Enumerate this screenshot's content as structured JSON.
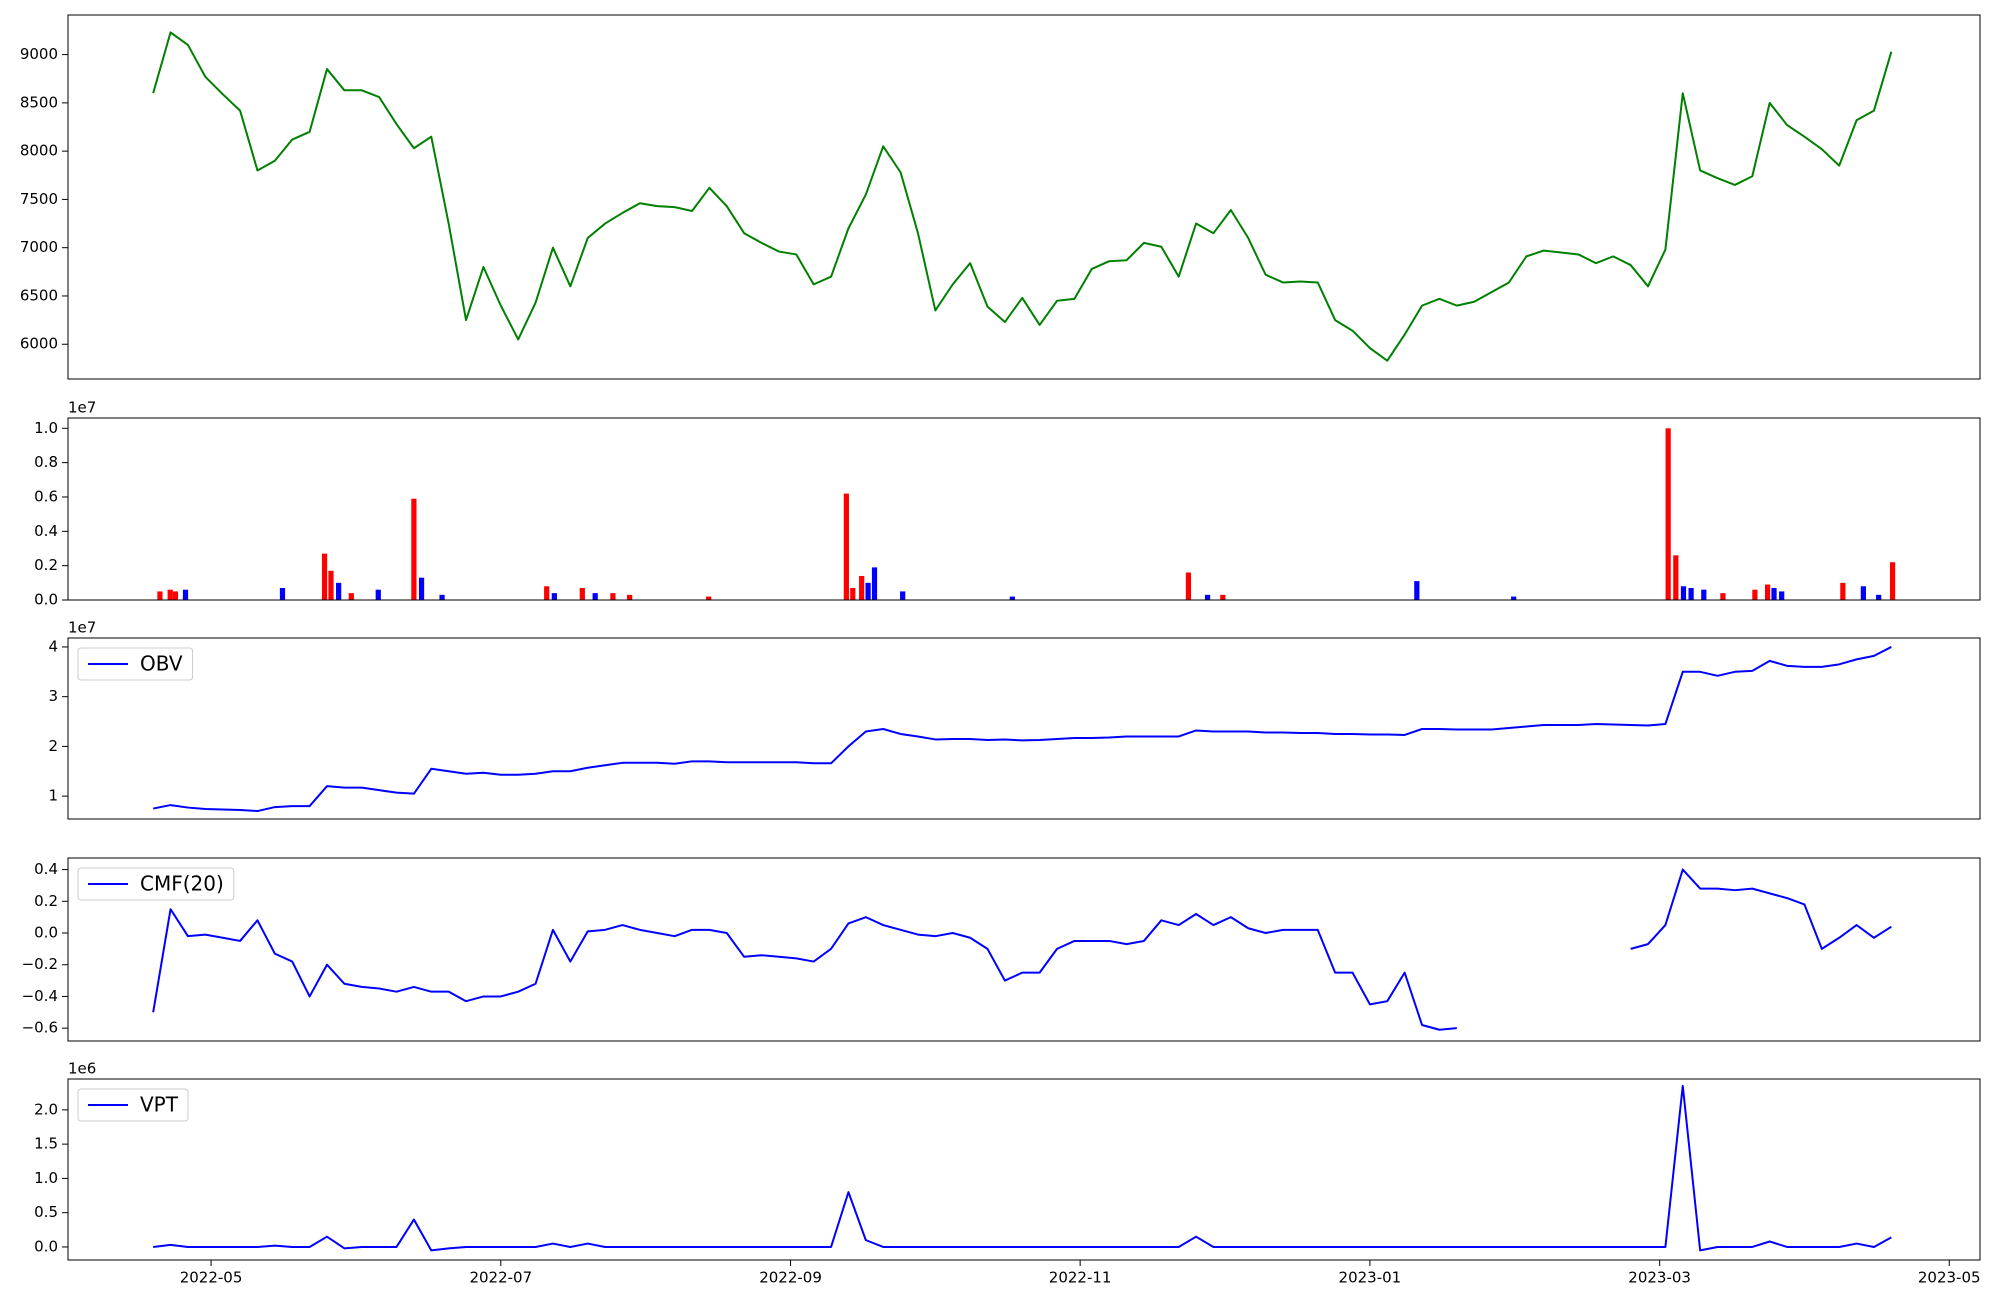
{
  "chart_data": [
    {
      "type": "line",
      "color": "#008000",
      "xlim": [
        2022.251,
        2023.351
      ],
      "ylim": [
        5640,
        9410
      ],
      "yticks": [
        6000,
        6500,
        7000,
        7500,
        8000,
        8500,
        9000
      ],
      "x": [
        2022.3,
        2022.31,
        2022.32,
        2022.33,
        2022.34,
        2022.35,
        2022.36,
        2022.37,
        2022.38,
        2022.39,
        2022.4,
        2022.41,
        2022.42,
        2022.43,
        2022.44,
        2022.45,
        2022.46,
        2022.47,
        2022.48,
        2022.49,
        2022.5,
        2022.51,
        2022.52,
        2022.53,
        2022.54,
        2022.55,
        2022.56,
        2022.57,
        2022.58,
        2022.59,
        2022.6,
        2022.61,
        2022.62,
        2022.63,
        2022.64,
        2022.65,
        2022.66,
        2022.67,
        2022.68,
        2022.69,
        2022.7,
        2022.71,
        2022.72,
        2022.73,
        2022.74,
        2022.75,
        2022.76,
        2022.77,
        2022.78,
        2022.79,
        2022.8,
        2022.81,
        2022.82,
        2022.83,
        2022.84,
        2022.85,
        2022.86,
        2022.87,
        2022.88,
        2022.89,
        2022.9,
        2022.91,
        2022.92,
        2022.93,
        2022.94,
        2022.95,
        2022.96,
        2022.97,
        2022.98,
        2022.99,
        2023,
        2023.01,
        2023.02,
        2023.03,
        2023.04,
        2023.05,
        2023.06,
        2023.07,
        2023.08,
        2023.09,
        2023.1,
        2023.11,
        2023.12,
        2023.13,
        2023.14,
        2023.15,
        2023.16,
        2023.17,
        2023.18,
        2023.19,
        2023.2,
        2023.21,
        2023.22,
        2023.23,
        2023.24,
        2023.25,
        2023.26,
        2023.27,
        2023.28,
        2023.29,
        2023.3
      ],
      "values": [
        8600,
        9230,
        9100,
        8770,
        8590,
        8420,
        7800,
        7900,
        8120,
        8200,
        8850,
        8630,
        8630,
        8560,
        8280,
        8030,
        8150,
        7250,
        6250,
        6800,
        6400,
        6050,
        6430,
        7000,
        6600,
        7100,
        7250,
        7360,
        7460,
        7430,
        7420,
        7380,
        7620,
        7430,
        7150,
        7050,
        6960,
        6930,
        6620,
        6700,
        7200,
        7550,
        8050,
        7780,
        7150,
        6350,
        6620,
        6840,
        6390,
        6230,
        6480,
        6200,
        6450,
        6470,
        6780,
        6860,
        6870,
        7050,
        7010,
        6700,
        7250,
        7150,
        7390,
        7100,
        6720,
        6640,
        6650,
        6640,
        6250,
        6140,
        5960,
        5830,
        6100,
        6400,
        6470,
        6400,
        6440,
        6540,
        6640,
        6910,
        6970,
        6950,
        6930,
        6840,
        6910,
        6820,
        6600,
        6980,
        8600,
        7800,
        7720,
        7650,
        7740,
        8500,
        8270,
        8150,
        8020,
        7850,
        8320,
        8420,
        9030
      ]
    },
    {
      "type": "bar",
      "offset_label": "1e7",
      "xlim": [
        2022.251,
        2023.351
      ],
      "ylim": [
        0,
        1.06
      ],
      "yticks": [
        {
          "value": 0,
          "label": "0.0"
        },
        0.2,
        0.4,
        0.6,
        0.8,
        {
          "value": 1,
          "label": "1.0"
        }
      ],
      "x": [
        2022.3039,
        2022.3098,
        2022.3128,
        2022.3186,
        2022.3744,
        2022.3986,
        2022.4023,
        2022.4067,
        2022.414,
        2022.4295,
        2022.45,
        2022.4544,
        2022.4662,
        2022.5264,
        2022.5308,
        2022.5469,
        2022.5543,
        2022.5645,
        2022.5741,
        2022.6196,
        2022.6988,
        2022.7025,
        2022.7076,
        2022.7113,
        2022.715,
        2022.7312,
        2022.7943,
        2022.8956,
        2022.9066,
        2022.9154,
        2023.027,
        2023.0827,
        2023.1716,
        2023.176,
        2023.1804,
        2023.1848,
        2023.1921,
        2023.2031,
        2023.2215,
        2023.2288,
        2023.2325,
        2023.2369,
        2023.2721,
        2023.2839,
        2023.2927,
        2023.3007
      ],
      "values": [
        0.05,
        0.06,
        0.05,
        0.06,
        0.07,
        0.27,
        0.17,
        0.1,
        0.04,
        0.06,
        0.59,
        0.13,
        0.03,
        0.08,
        0.04,
        0.07,
        0.04,
        0.04,
        0.03,
        0.02,
        0.62,
        0.07,
        0.14,
        0.1,
        0.19,
        0.05,
        0.02,
        0.16,
        0.03,
        0.03,
        0.11,
        0.02,
        1,
        0.26,
        0.08,
        0.07,
        0.06,
        0.04,
        0.06,
        0.09,
        0.07,
        0.05,
        0.1,
        0.08,
        0.03,
        0.22
      ],
      "colors": [
        "#ff0000",
        "#ff0000",
        "#ff0000",
        "#0000ff",
        "#0000ff",
        "#ff0000",
        "#ff0000",
        "#0000ff",
        "#ff0000",
        "#0000ff",
        "#ff0000",
        "#0000ff",
        "#0000ff",
        "#ff0000",
        "#0000ff",
        "#ff0000",
        "#0000ff",
        "#ff0000",
        "#ff0000",
        "#ff0000",
        "#ff0000",
        "#ff0000",
        "#ff0000",
        "#0000ff",
        "#0000ff",
        "#0000ff",
        "#0000ff",
        "#ff0000",
        "#0000ff",
        "#ff0000",
        "#0000ff",
        "#0000ff",
        "#ff0000",
        "#ff0000",
        "#0000ff",
        "#0000ff",
        "#0000ff",
        "#ff0000",
        "#ff0000",
        "#ff0000",
        "#0000ff",
        "#0000ff",
        "#ff0000",
        "#0000ff",
        "#0000ff",
        "#ff0000"
      ]
    },
    {
      "type": "line",
      "offset_label": "1e7",
      "legend": "upper left",
      "xlim": [
        2022.251,
        2023.351
      ],
      "ylim": [
        0.54,
        4.18
      ],
      "yticks": [
        1,
        2,
        3,
        4
      ],
      "x": [
        2022.3,
        2022.31,
        2022.32,
        2022.33,
        2022.34,
        2022.35,
        2022.36,
        2022.37,
        2022.38,
        2022.39,
        2022.4,
        2022.41,
        2022.42,
        2022.43,
        2022.44,
        2022.45,
        2022.46,
        2022.47,
        2022.48,
        2022.49,
        2022.5,
        2022.51,
        2022.52,
        2022.53,
        2022.54,
        2022.55,
        2022.56,
        2022.57,
        2022.58,
        2022.59,
        2022.6,
        2022.61,
        2022.62,
        2022.63,
        2022.64,
        2022.65,
        2022.66,
        2022.67,
        2022.68,
        2022.69,
        2022.7,
        2022.71,
        2022.72,
        2022.73,
        2022.74,
        2022.75,
        2022.76,
        2022.77,
        2022.78,
        2022.79,
        2022.8,
        2022.81,
        2022.82,
        2022.83,
        2022.84,
        2022.85,
        2022.86,
        2022.87,
        2022.88,
        2022.89,
        2022.9,
        2022.91,
        2022.92,
        2022.93,
        2022.94,
        2022.95,
        2022.96,
        2022.97,
        2022.98,
        2022.99,
        2023,
        2023.01,
        2023.02,
        2023.03,
        2023.04,
        2023.05,
        2023.06,
        2023.07,
        2023.08,
        2023.09,
        2023.1,
        2023.11,
        2023.12,
        2023.13,
        2023.14,
        2023.15,
        2023.16,
        2023.17,
        2023.18,
        2023.19,
        2023.2,
        2023.21,
        2023.22,
        2023.23,
        2023.24,
        2023.25,
        2023.26,
        2023.27,
        2023.28,
        2023.29,
        2023.3
      ],
      "series": [
        {
          "name": "OBV",
          "color": "#0000ff",
          "values": [
            0.75,
            0.82,
            0.77,
            0.74,
            0.73,
            0.72,
            0.7,
            0.78,
            0.8,
            0.8,
            1.2,
            1.17,
            1.17,
            1.12,
            1.07,
            1.05,
            1.55,
            1.5,
            1.45,
            1.47,
            1.43,
            1.43,
            1.45,
            1.5,
            1.5,
            1.57,
            1.62,
            1.67,
            1.67,
            1.67,
            1.65,
            1.7,
            1.7,
            1.68,
            1.68,
            1.68,
            1.68,
            1.68,
            1.66,
            1.66,
            2,
            2.3,
            2.35,
            2.25,
            2.2,
            2.14,
            2.15,
            2.15,
            2.13,
            2.14,
            2.12,
            2.13,
            2.15,
            2.17,
            2.17,
            2.18,
            2.2,
            2.2,
            2.2,
            2.2,
            2.32,
            2.3,
            2.3,
            2.3,
            2.28,
            2.28,
            2.27,
            2.27,
            2.25,
            2.25,
            2.24,
            2.24,
            2.23,
            2.35,
            2.35,
            2.34,
            2.34,
            2.34,
            2.37,
            2.4,
            2.43,
            2.43,
            2.43,
            2.45,
            2.44,
            2.43,
            2.42,
            2.45,
            3.5,
            3.5,
            3.42,
            3.5,
            3.52,
            3.72,
            3.62,
            3.6,
            3.6,
            3.65,
            3.75,
            3.82,
            4
          ]
        }
      ]
    },
    {
      "type": "line",
      "legend": "upper left",
      "xlim": [
        2022.251,
        2023.351
      ],
      "ylim": [
        -0.681,
        0.473
      ],
      "yticks": [
        {
          "value": -0.6,
          "label": "−0.6"
        },
        {
          "value": -0.4,
          "label": "−0.4"
        },
        {
          "value": -0.2,
          "label": "−0.2"
        },
        {
          "value": 0,
          "label": "0.0"
        },
        0.2,
        0.4
      ],
      "x": [
        2022.3,
        2022.31,
        2022.32,
        2022.33,
        2022.34,
        2022.35,
        2022.36,
        2022.37,
        2022.38,
        2022.39,
        2022.4,
        2022.41,
        2022.42,
        2022.43,
        2022.44,
        2022.45,
        2022.46,
        2022.47,
        2022.48,
        2022.49,
        2022.5,
        2022.51,
        2022.52,
        2022.53,
        2022.54,
        2022.55,
        2022.56,
        2022.57,
        2022.58,
        2022.59,
        2022.6,
        2022.61,
        2022.62,
        2022.63,
        2022.64,
        2022.65,
        2022.66,
        2022.67,
        2022.68,
        2022.69,
        2022.7,
        2022.71,
        2022.72,
        2022.73,
        2022.74,
        2022.75,
        2022.76,
        2022.77,
        2022.78,
        2022.79,
        2022.8,
        2022.81,
        2022.82,
        2022.83,
        2022.84,
        2022.85,
        2022.86,
        2022.87,
        2022.88,
        2022.89,
        2022.9,
        2022.91,
        2022.92,
        2022.93,
        2022.94,
        2022.95,
        2022.96,
        2022.97,
        2022.98,
        2022.99,
        2023,
        2023.01,
        2023.02,
        2023.03,
        2023.04,
        2023.05,
        2023.06,
        2023.07,
        2023.08,
        2023.09,
        2023.1,
        2023.11,
        2023.12,
        2023.13,
        2023.14,
        2023.15,
        2023.16,
        2023.17,
        2023.18,
        2023.19,
        2023.2,
        2023.21,
        2023.22,
        2023.23,
        2023.24,
        2023.25,
        2023.26,
        2023.27,
        2023.28,
        2023.29,
        2023.3
      ],
      "series": [
        {
          "name": "CMF(20)",
          "color": "#0000ff",
          "values": [
            -0.5,
            0.15,
            -0.02,
            -0.01,
            -0.03,
            -0.05,
            0.08,
            -0.13,
            -0.18,
            -0.4,
            -0.2,
            -0.32,
            -0.34,
            -0.35,
            -0.37,
            -0.34,
            -0.37,
            -0.37,
            -0.43,
            -0.4,
            -0.4,
            -0.37,
            -0.32,
            0.02,
            -0.18,
            0.01,
            0.02,
            0.05,
            0.02,
            0,
            -0.02,
            0.02,
            0.02,
            0,
            -0.15,
            -0.14,
            -0.15,
            -0.16,
            -0.18,
            -0.1,
            0.06,
            0.1,
            0.05,
            0.02,
            -0.01,
            -0.02,
            0,
            -0.03,
            -0.1,
            -0.3,
            -0.25,
            -0.25,
            -0.1,
            -0.05,
            -0.05,
            -0.05,
            -0.07,
            -0.05,
            0.08,
            0.05,
            0.12,
            0.05,
            0.1,
            0.03,
            0,
            0.02,
            0.02,
            0.02,
            -0.25,
            -0.25,
            -0.45,
            -0.43,
            -0.25,
            -0.58,
            -0.61,
            -0.6,
            null,
            null,
            null,
            null,
            null,
            null,
            null,
            null,
            null,
            -0.1,
            -0.07,
            0.05,
            0.4,
            0.28,
            0.28,
            0.27,
            0.28,
            0.25,
            0.22,
            0.18,
            -0.1,
            -0.03,
            0.05,
            -0.03,
            0.04
          ]
        }
      ]
    },
    {
      "type": "line",
      "offset_label": "1e6",
      "legend": "upper left",
      "xlim": [
        2022.251,
        2023.351
      ],
      "ylim": [
        -0.19,
        2.45
      ],
      "yticks": [
        {
          "value": 0,
          "label": "0.0"
        },
        0.5,
        {
          "value": 1,
          "label": "1.0"
        },
        1.5,
        {
          "value": 2,
          "label": "2.0"
        }
      ],
      "xticks": [
        {
          "value": 2022.3333,
          "label": "2022-05"
        },
        {
          "value": 2022.5,
          "label": "2022-07"
        },
        {
          "value": 2022.6667,
          "label": "2022-09"
        },
        {
          "value": 2022.8333,
          "label": "2022-11"
        },
        {
          "value": 2023,
          "label": "2023-01"
        },
        {
          "value": 2023.1667,
          "label": "2023-03"
        },
        {
          "value": 2023.3333,
          "label": "2023-05"
        }
      ],
      "x": [
        2022.3,
        2022.31,
        2022.32,
        2022.33,
        2022.34,
        2022.35,
        2022.36,
        2022.37,
        2022.38,
        2022.39,
        2022.4,
        2022.41,
        2022.42,
        2022.43,
        2022.44,
        2022.45,
        2022.46,
        2022.47,
        2022.48,
        2022.49,
        2022.5,
        2022.51,
        2022.52,
        2022.53,
        2022.54,
        2022.55,
        2022.56,
        2022.57,
        2022.58,
        2022.59,
        2022.6,
        2022.61,
        2022.62,
        2022.63,
        2022.64,
        2022.65,
        2022.66,
        2022.67,
        2022.68,
        2022.69,
        2022.7,
        2022.71,
        2022.72,
        2022.73,
        2022.74,
        2022.75,
        2022.76,
        2022.77,
        2022.78,
        2022.79,
        2022.8,
        2022.81,
        2022.82,
        2022.83,
        2022.84,
        2022.85,
        2022.86,
        2022.87,
        2022.88,
        2022.89,
        2022.9,
        2022.91,
        2022.92,
        2022.93,
        2022.94,
        2022.95,
        2022.96,
        2022.97,
        2022.98,
        2022.99,
        2023,
        2023.01,
        2023.02,
        2023.03,
        2023.04,
        2023.05,
        2023.06,
        2023.07,
        2023.08,
        2023.09,
        2023.1,
        2023.11,
        2023.12,
        2023.13,
        2023.14,
        2023.15,
        2023.16,
        2023.17,
        2023.18,
        2023.19,
        2023.2,
        2023.21,
        2023.22,
        2023.23,
        2023.24,
        2023.25,
        2023.26,
        2023.27,
        2023.28,
        2023.29,
        2023.3
      ],
      "series": [
        {
          "name": "VPT",
          "color": "#0000ff",
          "values": [
            0,
            0.03,
            0,
            0,
            0,
            0,
            0,
            0.02,
            0,
            0,
            0.15,
            -0.02,
            0,
            0,
            0,
            0.4,
            -0.05,
            -0.02,
            0,
            0,
            0,
            0,
            0,
            0.05,
            0,
            0.05,
            0,
            0,
            0,
            0,
            0,
            0,
            0,
            0,
            0,
            0,
            0,
            0,
            0,
            0,
            0.8,
            0.1,
            0,
            0,
            0,
            0,
            0,
            0,
            0,
            0,
            0,
            0,
            0,
            0,
            0,
            0,
            0,
            0,
            0,
            0,
            0.15,
            0,
            0,
            0,
            0,
            0,
            0,
            0,
            0,
            0,
            0,
            0,
            0,
            0,
            0,
            0,
            0,
            0,
            0,
            0,
            0,
            0,
            0,
            0,
            0,
            0,
            0,
            0,
            2.35,
            -0.05,
            0,
            0,
            0,
            0.08,
            0,
            0,
            0,
            0,
            0.05,
            0,
            0.14
          ]
        }
      ]
    }
  ]
}
